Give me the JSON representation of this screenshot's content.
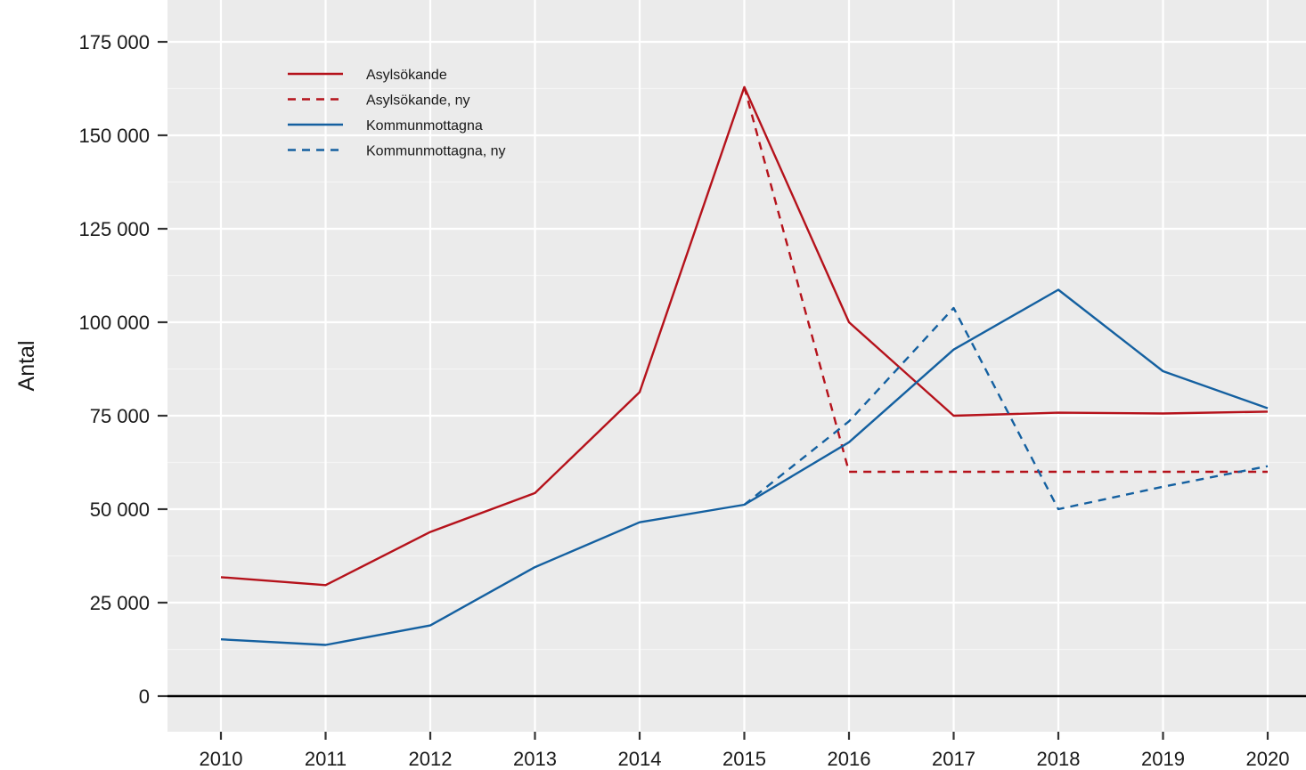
{
  "chart_data": {
    "type": "line",
    "title": "",
    "xlabel": "",
    "ylabel": "Antal",
    "x": [
      2010,
      2011,
      2012,
      2013,
      2014,
      2015,
      2016,
      2017,
      2018,
      2019,
      2020
    ],
    "x_tick_labels": [
      "2010",
      "2011",
      "2012",
      "2013",
      "2014",
      "2015",
      "2016",
      "2017",
      "2018",
      "2019",
      "2020"
    ],
    "ylim": [
      -20000,
      182000
    ],
    "y_ticks": [
      0,
      25000,
      50000,
      75000,
      100000,
      125000,
      150000,
      175000
    ],
    "y_tick_labels": [
      "0",
      "25 000",
      "50 000",
      "75 000",
      "100 000",
      "125 000",
      "150 000",
      "175 000"
    ],
    "grid": true,
    "legend_position": "top-left",
    "series": [
      {
        "name": "Asylsökande",
        "color": "#B5121B",
        "dash": "solid",
        "x": [
          2010,
          2011,
          2012,
          2013,
          2014,
          2015,
          2016,
          2017,
          2018,
          2019,
          2020
        ],
        "values": [
          31800,
          29700,
          43900,
          54300,
          81300,
          162900,
          100000,
          75000,
          75800,
          75600,
          76100
        ]
      },
      {
        "name": "Asylsökande, ny",
        "color": "#B5121B",
        "dash": "dashed",
        "x": [
          2015,
          2016,
          2017,
          2018,
          2019,
          2020
        ],
        "values": [
          162900,
          60000,
          60000,
          60000,
          60000,
          60000
        ]
      },
      {
        "name": "Kommunmottagna",
        "color": "#1460A0",
        "dash": "solid",
        "x": [
          2010,
          2011,
          2012,
          2013,
          2014,
          2015,
          2016,
          2017,
          2018,
          2019,
          2020
        ],
        "values": [
          15200,
          13700,
          18900,
          34500,
          46500,
          51200,
          67900,
          92700,
          108700,
          86900,
          77000
        ]
      },
      {
        "name": "Kommunmottagna, ny",
        "color": "#1460A0",
        "dash": "dashed",
        "x": [
          2015,
          2016,
          2017,
          2018,
          2019,
          2020
        ],
        "values": [
          51200,
          73500,
          103800,
          50000,
          56000,
          61500
        ]
      }
    ]
  }
}
